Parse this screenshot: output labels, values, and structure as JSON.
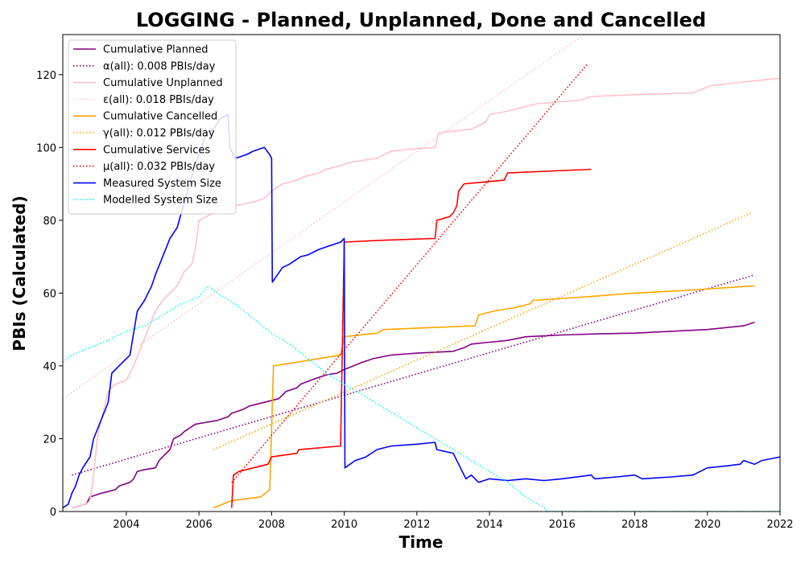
{
  "chart_data": {
    "type": "line",
    "title": "LOGGING - Planned, Unplanned, Done  and Cancelled",
    "xlabel": "Time",
    "ylabel": "PBIs (Calculated)",
    "xlim": [
      2002.25,
      2022.0
    ],
    "ylim": [
      0,
      131
    ],
    "xticks": [
      2004,
      2006,
      2008,
      2010,
      2012,
      2014,
      2016,
      2018,
      2020,
      2022
    ],
    "yticks": [
      0,
      20,
      40,
      60,
      80,
      100,
      120
    ],
    "grid": false,
    "legend_position": "top-left",
    "series": [
      {
        "name": "Cumulative Planned",
        "color": "#800080",
        "style": "solid",
        "points": [
          [
            2002.5,
            1
          ],
          [
            2002.9,
            2
          ],
          [
            2003.0,
            4
          ],
          [
            2003.3,
            5
          ],
          [
            2003.7,
            6
          ],
          [
            2003.8,
            7
          ],
          [
            2004.1,
            8
          ],
          [
            2004.2,
            9
          ],
          [
            2004.3,
            11
          ],
          [
            2004.5,
            11.5
          ],
          [
            2004.8,
            12
          ],
          [
            2004.9,
            14
          ],
          [
            2005.0,
            15
          ],
          [
            2005.2,
            17
          ],
          [
            2005.3,
            20
          ],
          [
            2005.5,
            21
          ],
          [
            2005.6,
            22
          ],
          [
            2005.9,
            24
          ],
          [
            2006.5,
            25
          ],
          [
            2006.8,
            26
          ],
          [
            2006.9,
            27
          ],
          [
            2007.2,
            28
          ],
          [
            2007.4,
            29
          ],
          [
            2007.8,
            30
          ],
          [
            2008.2,
            31
          ],
          [
            2008.4,
            33
          ],
          [
            2008.7,
            34
          ],
          [
            2008.8,
            35
          ],
          [
            2009.2,
            36.5
          ],
          [
            2009.5,
            37.5
          ],
          [
            2009.8,
            38
          ],
          [
            2010.0,
            39
          ],
          [
            2010.5,
            41
          ],
          [
            2010.8,
            42
          ],
          [
            2011.3,
            43
          ],
          [
            2012.0,
            43.5
          ],
          [
            2013.0,
            44
          ],
          [
            2013.3,
            45
          ],
          [
            2013.5,
            46
          ],
          [
            2014.0,
            46.5
          ],
          [
            2014.5,
            47
          ],
          [
            2015.0,
            48
          ],
          [
            2016.0,
            48.5
          ],
          [
            2017.0,
            48.8
          ],
          [
            2018.0,
            49
          ],
          [
            2019.0,
            49.5
          ],
          [
            2020.0,
            50
          ],
          [
            2021.0,
            51
          ],
          [
            2021.3,
            52
          ]
        ]
      },
      {
        "name": "α(all): 0.008 PBIs/day",
        "color": "#800080",
        "style": "dotted",
        "points": [
          [
            2002.5,
            10
          ],
          [
            2021.3,
            65
          ]
        ]
      },
      {
        "name": "Cumulative Unplanned",
        "color": "#ffc0cb",
        "style": "solid",
        "points": [
          [
            2002.5,
            1
          ],
          [
            2002.9,
            2
          ],
          [
            2003.0,
            3
          ],
          [
            2003.1,
            10
          ],
          [
            2003.2,
            20
          ],
          [
            2003.3,
            25
          ],
          [
            2003.5,
            33
          ],
          [
            2003.7,
            35
          ],
          [
            2004.0,
            36
          ],
          [
            2004.2,
            40
          ],
          [
            2004.4,
            45
          ],
          [
            2004.6,
            50
          ],
          [
            2004.8,
            55
          ],
          [
            2005.0,
            58
          ],
          [
            2005.2,
            60
          ],
          [
            2005.4,
            62
          ],
          [
            2005.6,
            66
          ],
          [
            2005.8,
            68
          ],
          [
            2005.9,
            72
          ],
          [
            2006.0,
            80
          ],
          [
            2006.2,
            81
          ],
          [
            2006.4,
            82
          ],
          [
            2006.6,
            83
          ],
          [
            2007.0,
            84
          ],
          [
            2007.5,
            85
          ],
          [
            2007.8,
            86
          ],
          [
            2008.0,
            88
          ],
          [
            2008.3,
            90
          ],
          [
            2008.7,
            91
          ],
          [
            2008.9,
            92
          ],
          [
            2009.3,
            93
          ],
          [
            2009.5,
            94
          ],
          [
            2009.9,
            95
          ],
          [
            2010.2,
            96
          ],
          [
            2010.9,
            97
          ],
          [
            2011.3,
            99
          ],
          [
            2011.8,
            99.5
          ],
          [
            2012.5,
            100
          ],
          [
            2012.6,
            104
          ],
          [
            2013.5,
            105
          ],
          [
            2013.9,
            107
          ],
          [
            2014.0,
            109
          ],
          [
            2014.5,
            110
          ],
          [
            2015.3,
            112
          ],
          [
            2016.5,
            113
          ],
          [
            2016.8,
            114
          ],
          [
            2018.0,
            114.5
          ],
          [
            2019.6,
            115
          ],
          [
            2020.1,
            117
          ],
          [
            2021.0,
            118
          ],
          [
            2022.0,
            119
          ]
        ]
      },
      {
        "name": "ε(all): 0.018 PBIs/day",
        "color": "#ffc0cb",
        "style": "dotted",
        "points": [
          [
            2002.25,
            31
          ],
          [
            2016.6,
            131
          ]
        ]
      },
      {
        "name": "Cumulative Cancelled",
        "color": "#ffa500",
        "style": "solid",
        "points": [
          [
            2006.4,
            1
          ],
          [
            2006.9,
            3
          ],
          [
            2007.7,
            4
          ],
          [
            2007.95,
            6
          ],
          [
            2008.05,
            40
          ],
          [
            2009.0,
            41.5
          ],
          [
            2009.9,
            43
          ],
          [
            2010.0,
            48
          ],
          [
            2010.9,
            49
          ],
          [
            2011.1,
            50
          ],
          [
            2013.6,
            51
          ],
          [
            2013.7,
            54
          ],
          [
            2014.1,
            55
          ],
          [
            2014.7,
            56
          ],
          [
            2015.1,
            57
          ],
          [
            2015.2,
            58
          ],
          [
            2016.7,
            59
          ],
          [
            2018.0,
            60
          ],
          [
            2019.5,
            60.8
          ],
          [
            2021.3,
            62
          ]
        ]
      },
      {
        "name": "γ(all): 0.012 PBIs/day",
        "color": "#ffa500",
        "style": "dotted",
        "points": [
          [
            2006.4,
            17
          ],
          [
            2021.2,
            82
          ]
        ]
      },
      {
        "name": "Cumulative Services",
        "color": "#ff0000",
        "style": "solid",
        "points": [
          [
            2006.9,
            1
          ],
          [
            2006.95,
            10
          ],
          [
            2007.1,
            11
          ],
          [
            2007.9,
            13
          ],
          [
            2008.0,
            15
          ],
          [
            2008.7,
            16
          ],
          [
            2008.75,
            17
          ],
          [
            2009.9,
            18
          ],
          [
            2010.0,
            74
          ],
          [
            2011.0,
            74.5
          ],
          [
            2012.5,
            75
          ],
          [
            2012.55,
            80
          ],
          [
            2012.9,
            81
          ],
          [
            2013.0,
            82
          ],
          [
            2013.1,
            84
          ],
          [
            2013.15,
            88
          ],
          [
            2013.3,
            90
          ],
          [
            2014.4,
            91
          ],
          [
            2014.5,
            93
          ],
          [
            2016.8,
            94
          ]
        ]
      },
      {
        "name": "μ(all): 0.032 PBIs/day",
        "color": "#ff0000",
        "style": "dotted",
        "points": [
          [
            2006.9,
            8
          ],
          [
            2016.7,
            123
          ]
        ]
      },
      {
        "name": "Measured System Size",
        "color": "#0000ff",
        "style": "solid",
        "points": [
          [
            2002.25,
            1
          ],
          [
            2002.4,
            2
          ],
          [
            2002.5,
            5
          ],
          [
            2002.6,
            7
          ],
          [
            2002.7,
            10
          ],
          [
            2002.8,
            12
          ],
          [
            2003.0,
            15
          ],
          [
            2003.1,
            20
          ],
          [
            2003.3,
            25
          ],
          [
            2003.5,
            30
          ],
          [
            2003.6,
            38
          ],
          [
            2003.8,
            40
          ],
          [
            2004.1,
            43
          ],
          [
            2004.3,
            55
          ],
          [
            2004.5,
            58
          ],
          [
            2004.7,
            62
          ],
          [
            2004.8,
            65
          ],
          [
            2005.0,
            70
          ],
          [
            2005.2,
            75
          ],
          [
            2005.4,
            78
          ],
          [
            2005.6,
            85
          ],
          [
            2005.8,
            92
          ],
          [
            2006.0,
            98
          ],
          [
            2006.2,
            104
          ],
          [
            2006.4,
            105
          ],
          [
            2006.6,
            108
          ],
          [
            2006.8,
            109
          ],
          [
            2006.85,
            100
          ],
          [
            2007.0,
            97
          ],
          [
            2007.3,
            98
          ],
          [
            2007.5,
            99
          ],
          [
            2007.8,
            100
          ],
          [
            2007.95,
            98
          ],
          [
            2008.0,
            97
          ],
          [
            2008.02,
            63
          ],
          [
            2008.3,
            67
          ],
          [
            2008.5,
            68
          ],
          [
            2008.8,
            70
          ],
          [
            2009.0,
            70.5
          ],
          [
            2009.3,
            72
          ],
          [
            2009.6,
            73
          ],
          [
            2009.9,
            74
          ],
          [
            2010.0,
            75
          ],
          [
            2010.02,
            12
          ],
          [
            2010.3,
            14
          ],
          [
            2010.6,
            15
          ],
          [
            2010.9,
            17
          ],
          [
            2011.3,
            18
          ],
          [
            2012.0,
            18.5
          ],
          [
            2012.5,
            19
          ],
          [
            2012.55,
            17
          ],
          [
            2013.0,
            16
          ],
          [
            2013.2,
            12
          ],
          [
            2013.35,
            9
          ],
          [
            2013.5,
            10
          ],
          [
            2013.7,
            8
          ],
          [
            2014.0,
            9
          ],
          [
            2014.5,
            8.5
          ],
          [
            2015.0,
            9
          ],
          [
            2015.5,
            8.5
          ],
          [
            2016.0,
            9
          ],
          [
            2016.8,
            10
          ],
          [
            2016.9,
            9
          ],
          [
            2017.5,
            9.5
          ],
          [
            2018.0,
            10
          ],
          [
            2018.2,
            9
          ],
          [
            2019.0,
            9.5
          ],
          [
            2019.6,
            10
          ],
          [
            2019.8,
            11
          ],
          [
            2020.0,
            12
          ],
          [
            2020.5,
            12.5
          ],
          [
            2020.9,
            13
          ],
          [
            2021.0,
            14
          ],
          [
            2021.3,
            13
          ],
          [
            2021.5,
            14
          ],
          [
            2022.0,
            15
          ]
        ]
      },
      {
        "name": "Modelled System Size",
        "color": "#00ffff",
        "style": "dotted",
        "points": [
          [
            2002.25,
            41
          ],
          [
            2002.5,
            43
          ],
          [
            2003.0,
            45
          ],
          [
            2003.5,
            47
          ],
          [
            2004.0,
            49.5
          ],
          [
            2004.5,
            51
          ],
          [
            2005.0,
            54
          ],
          [
            2005.5,
            57
          ],
          [
            2006.0,
            59
          ],
          [
            2006.25,
            62
          ],
          [
            2006.5,
            60
          ],
          [
            2007.0,
            57
          ],
          [
            2007.5,
            53
          ],
          [
            2008.0,
            49
          ],
          [
            2008.5,
            46
          ],
          [
            2009.0,
            42
          ],
          [
            2009.5,
            38
          ],
          [
            2010.0,
            35
          ],
          [
            2010.5,
            32
          ],
          [
            2011.0,
            29
          ],
          [
            2011.5,
            26
          ],
          [
            2012.0,
            23
          ],
          [
            2012.5,
            20
          ],
          [
            2013.0,
            17
          ],
          [
            2013.5,
            14
          ],
          [
            2014.0,
            11
          ],
          [
            2014.5,
            8
          ],
          [
            2015.0,
            4
          ],
          [
            2015.5,
            1
          ],
          [
            2015.6,
            0
          ],
          [
            2016.0,
            0
          ],
          [
            2018.0,
            0
          ],
          [
            2020.0,
            0
          ],
          [
            2022.0,
            0
          ]
        ]
      }
    ]
  }
}
